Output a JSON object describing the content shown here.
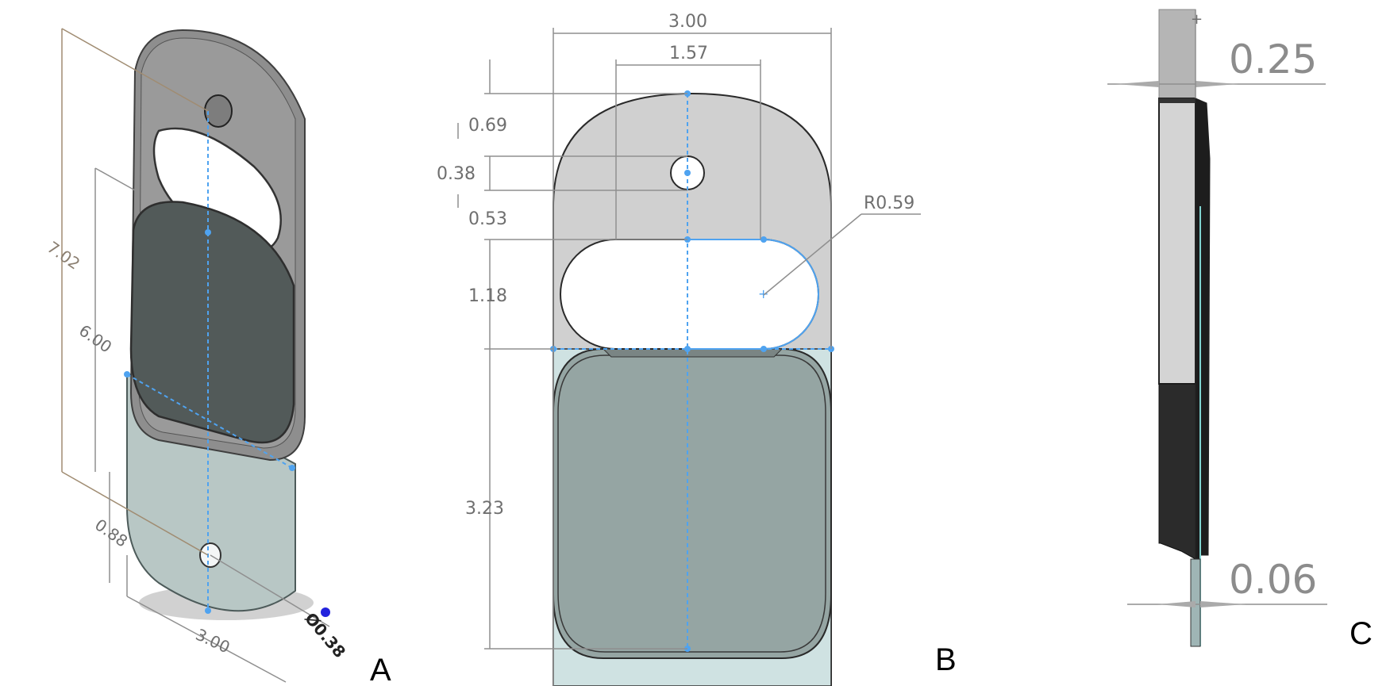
{
  "panels": {
    "a": {
      "letter": "A",
      "dims": {
        "overall_length": "7.02",
        "body_length": "6.00",
        "lower_offset": "0.88",
        "width": "3.00",
        "hole_diameter": "Ø0.38"
      }
    },
    "b": {
      "letter": "B",
      "dims": {
        "overall_width": "3.00",
        "slot_width": "1.57",
        "top_to_hole": "0.69",
        "hole_diameter": "0.38",
        "hole_to_slot": "0.53",
        "slot_height": "1.18",
        "lower_height": "3.23",
        "slot_radius": "R0.59"
      }
    },
    "c": {
      "letter": "C",
      "dims": {
        "thickness_upper": "0.25",
        "thickness_lower": "0.06"
      }
    }
  },
  "colors": {
    "plate_light": "#d0d0d0",
    "plate_dark_3d": "#8e8e8e",
    "pad_green": "#95a5a3",
    "pad_light": "#b8c7c5",
    "sketch_blue": "#4fa3f0"
  }
}
